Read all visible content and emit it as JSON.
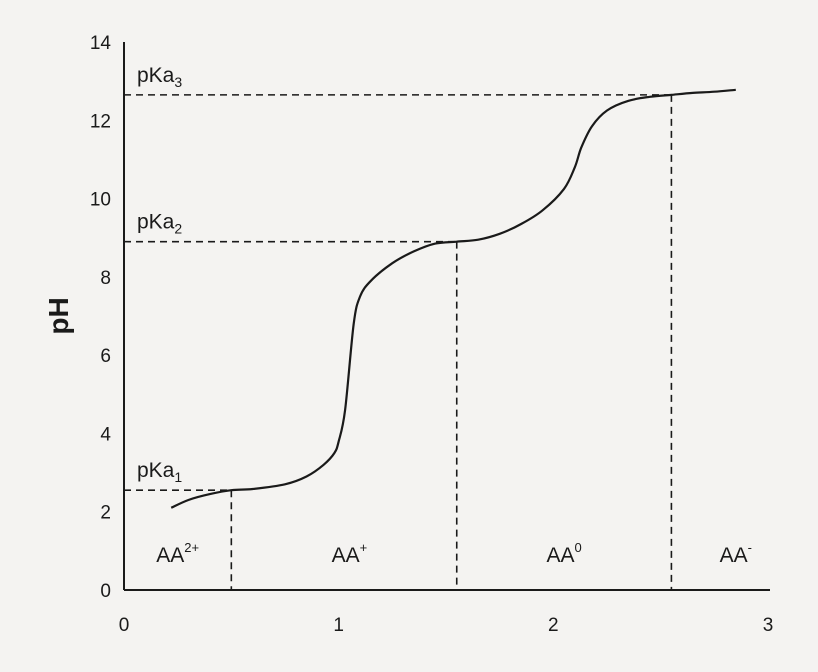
{
  "chart_data": {
    "type": "line",
    "ylabel": "pH",
    "xlabel": "",
    "xlim": [
      0,
      3
    ],
    "ylim": [
      0,
      14
    ],
    "x_ticks": [
      "0",
      "1",
      "2",
      "3"
    ],
    "y_ticks": [
      "0",
      "2",
      "4",
      "6",
      "8",
      "10",
      "12",
      "14"
    ],
    "curve": {
      "x": [
        0.22,
        0.3,
        0.4,
        0.5,
        0.6,
        0.75,
        0.85,
        0.93,
        0.98,
        1.0,
        1.03,
        1.07,
        1.1,
        1.15,
        1.25,
        1.35,
        1.45,
        1.55,
        1.65,
        1.75,
        1.85,
        1.95,
        2.05,
        2.1,
        2.13,
        2.18,
        2.25,
        2.35,
        2.45,
        2.55,
        2.65,
        2.75,
        2.85
      ],
      "y": [
        2.1,
        2.3,
        2.45,
        2.55,
        2.58,
        2.7,
        2.9,
        3.2,
        3.5,
        3.8,
        4.6,
        6.8,
        7.5,
        7.9,
        8.35,
        8.65,
        8.85,
        8.9,
        8.95,
        9.1,
        9.35,
        9.7,
        10.25,
        10.8,
        11.3,
        11.85,
        12.25,
        12.5,
        12.6,
        12.65,
        12.7,
        12.73,
        12.78
      ]
    },
    "reference_lines": [
      {
        "label": "pKa",
        "subscript": "1",
        "y": 2.55,
        "x_end": 0.5
      },
      {
        "label": "pKa",
        "subscript": "2",
        "y": 8.9,
        "x_end": 1.55
      },
      {
        "label": "pKa",
        "subscript": "3",
        "y": 12.65,
        "x_end": 2.55
      }
    ],
    "regions": [
      {
        "label": "AA",
        "charge": "2+",
        "x": 0.25
      },
      {
        "label": "AA",
        "charge": "+",
        "x": 1.05
      },
      {
        "label": "AA",
        "charge": "0",
        "x": 2.05
      },
      {
        "label": "AA",
        "charge": "-",
        "x": 2.85
      }
    ],
    "grid": false,
    "legend": "none",
    "colors": {
      "line": "#1a1a1a",
      "background": "#f4f3f1"
    }
  }
}
